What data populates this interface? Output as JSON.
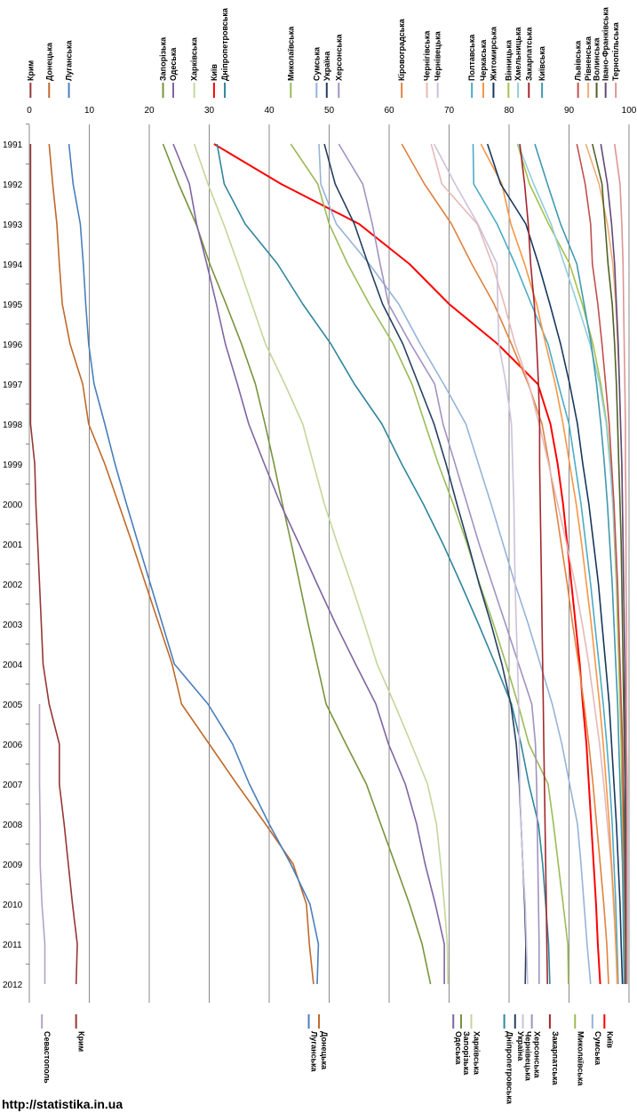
{
  "source_url": "http://statistika.in.ua",
  "chart_data": {
    "type": "line",
    "orientation": "vertical-time",
    "xlim": [
      0,
      100
    ],
    "x_ticks": [
      0,
      10,
      20,
      30,
      40,
      50,
      60,
      70,
      80,
      90,
      100
    ],
    "years": [
      "1991",
      "1992",
      "1993",
      "1994",
      "1995",
      "1996",
      "1997",
      "1998",
      "1999",
      "2000",
      "2001",
      "2002",
      "2003",
      "2004",
      "2005",
      "2006",
      "2007",
      "2008",
      "2009",
      "2010",
      "2011",
      "2012"
    ],
    "grid": true,
    "series": [
      {
        "name": "Крим",
        "color": "#953735",
        "values": [
          0.2,
          0.2,
          0.2,
          0.2,
          0.2,
          0.2,
          0.2,
          0.2,
          0.9,
          1.1,
          1.4,
          1.7,
          2.0,
          2.3,
          3.3,
          5.0,
          5.0,
          5.8,
          6.5,
          7.2,
          8.0,
          7.8
        ]
      },
      {
        "name": "Донецька",
        "color": "#c0692a",
        "values": [
          3.3,
          3.9,
          4.6,
          5.0,
          5.5,
          6.8,
          8.9,
          9.9,
          12.6,
          14.9,
          17.2,
          19.4,
          21.6,
          23.8,
          25.4,
          30.0,
          34.6,
          39.4,
          44.0,
          46.2,
          46.7,
          47.4
        ]
      },
      {
        "name": "Луганська",
        "color": "#4a7ebb",
        "values": [
          6.6,
          7.3,
          8.5,
          9.0,
          9.4,
          9.9,
          10.8,
          12.6,
          14.3,
          16.2,
          18.2,
          20.2,
          22.2,
          24.2,
          29.8,
          33.9,
          36.7,
          40.0,
          43.6,
          46.8,
          48.2,
          48.0
        ]
      },
      {
        "name": "Севастополь",
        "color": "#b3a2c7",
        "values": [
          null,
          null,
          null,
          null,
          null,
          null,
          null,
          null,
          null,
          null,
          null,
          null,
          null,
          null,
          1.7,
          1.7,
          1.7,
          1.8,
          1.8,
          2.1,
          2.6,
          2.6
        ]
      },
      {
        "name": "Запорізька",
        "color": "#77933c",
        "values": [
          22.3,
          24.9,
          27.8,
          30.1,
          32.8,
          35.4,
          37.7,
          39.3,
          40.8,
          42.2,
          43.7,
          45.1,
          46.5,
          48.0,
          49.5,
          52.8,
          56.2,
          58.6,
          61.0,
          63.4,
          65.5,
          66.9
        ]
      },
      {
        "name": "Одеська",
        "color": "#8064a2",
        "values": [
          24.0,
          26.7,
          27.9,
          29.6,
          31.2,
          32.7,
          34.7,
          36.6,
          39.2,
          41.9,
          45.0,
          48.0,
          51.1,
          54.4,
          57.8,
          59.9,
          62.7,
          64.6,
          66.0,
          67.7,
          69.2,
          69.2
        ]
      },
      {
        "name": "Харківська",
        "color": "#c3d69b",
        "values": [
          27.5,
          29.8,
          32.4,
          34.8,
          37.1,
          39.4,
          42.6,
          45.6,
          47.4,
          49.2,
          51.4,
          53.7,
          55.9,
          58.0,
          60.9,
          63.7,
          66.4,
          67.9,
          68.6,
          69.2,
          69.7,
          69.8
        ]
      },
      {
        "name": "Київ",
        "color": "#ff0000",
        "values": [
          30.8,
          42.0,
          55.0,
          63.4,
          70.0,
          78.1,
          84.8,
          86.9,
          88.1,
          89.0,
          89.7,
          90.4,
          91.1,
          91.8,
          92.3,
          92.9,
          93.3,
          93.7,
          94.1,
          94.5,
          94.8,
          95.2
        ]
      },
      {
        "name": "Дніпропетровська",
        "color": "#31859c",
        "values": [
          31.3,
          32.5,
          36.0,
          41.4,
          45.6,
          50.3,
          54.2,
          58.8,
          62.1,
          65.7,
          69.0,
          72.0,
          74.9,
          77.7,
          80.4,
          82.0,
          83.3,
          84.9,
          85.6,
          86.1,
          86.6,
          86.8
        ]
      },
      {
        "name": "Миколаївська",
        "color": "#9bbb59",
        "values": [
          43.6,
          48.1,
          50.0,
          53.1,
          56.7,
          60.7,
          63.8,
          66.0,
          68.2,
          70.7,
          73.0,
          75.1,
          77.4,
          79.5,
          81.5,
          83.3,
          86.5,
          87.4,
          88.2,
          89.0,
          89.8,
          89.9
        ]
      },
      {
        "name": "Сумська",
        "color": "#95b3d7",
        "values": [
          48.3,
          48.6,
          51.2,
          56.7,
          61.6,
          65.2,
          69.1,
          72.8,
          74.9,
          77.0,
          79.0,
          81.0,
          83.2,
          85.2,
          87.2,
          88.8,
          90.1,
          91.4,
          92.0,
          92.5,
          93.0,
          93.6
        ]
      },
      {
        "name": "Україна",
        "color": "#254061",
        "values": [
          49.2,
          51.0,
          54.2,
          56.5,
          58.9,
          62.3,
          64.9,
          67.5,
          69.5,
          71.3,
          73.2,
          75.0,
          77.0,
          78.8,
          80.3,
          81.2,
          81.7,
          82.0,
          82.3,
          82.6,
          82.8,
          82.7
        ]
      },
      {
        "name": "Херсонська",
        "color": "#a092c0",
        "values": [
          51.6,
          55.6,
          57.2,
          58.5,
          59.9,
          63.6,
          67.6,
          69.0,
          71.0,
          73.0,
          75.0,
          77.2,
          79.4,
          81.6,
          83.8,
          84.4,
          84.6,
          84.7,
          84.8,
          84.9,
          85.0,
          85.0
        ]
      },
      {
        "name": "Кіровоградська",
        "color": "#e0823e",
        "values": [
          62.1,
          65.9,
          70.4,
          73.8,
          77.5,
          80.4,
          83.2,
          85.5,
          86.7,
          87.7,
          88.7,
          89.7,
          90.6,
          91.6,
          92.5,
          93.3,
          94.0,
          94.6,
          95.2,
          95.8,
          96.3,
          96.6
        ]
      },
      {
        "name": "Чернігівська",
        "color": "#e6b9b8",
        "values": [
          67.0,
          68.8,
          74.7,
          77.2,
          79.2,
          81.0,
          83.3,
          85.0,
          86.6,
          88.1,
          89.6,
          91.0,
          92.2,
          93.3,
          94.2,
          95.1,
          95.8,
          96.4,
          97.0,
          97.4,
          97.8,
          98.0
        ]
      },
      {
        "name": "Чернівецька",
        "color": "#ccc1da",
        "values": [
          67.5,
          71.0,
          74.8,
          78.0,
          78.1,
          78.3,
          79.5,
          80.4,
          80.6,
          80.8,
          80.9,
          81.0,
          81.2,
          81.4,
          81.6,
          81.7,
          81.8,
          82.0,
          82.3,
          82.7,
          82.9,
          83.1
        ]
      },
      {
        "name": "Полтавська",
        "color": "#4bacc6",
        "values": [
          74.0,
          74.1,
          78.0,
          81.0,
          83.7,
          86.5,
          88.2,
          90.0,
          91.0,
          92.0,
          92.8,
          93.6,
          94.3,
          95.0,
          95.7,
          96.3,
          96.8,
          97.2,
          97.5,
          97.8,
          98.0,
          98.2
        ]
      },
      {
        "name": "Черкаська",
        "color": "#f79646",
        "values": [
          75.3,
          78.8,
          80.3,
          82.6,
          84.6,
          86.1,
          87.7,
          89.0,
          90.1,
          91.2,
          92.1,
          92.9,
          93.7,
          94.4,
          95.1,
          95.7,
          96.2,
          96.7,
          97.1,
          97.5,
          97.8,
          98.1
        ]
      },
      {
        "name": "Житомирська",
        "color": "#17375e",
        "values": [
          76.4,
          78.6,
          82.8,
          84.9,
          86.8,
          88.6,
          90.1,
          91.4,
          92.3,
          93.3,
          94.1,
          94.9,
          95.5,
          96.1,
          96.7,
          97.1,
          97.5,
          97.9,
          98.2,
          98.5,
          98.7,
          98.9
        ]
      },
      {
        "name": "Вінницька",
        "color": "#a5c249",
        "values": [
          81.4,
          83.4,
          86.6,
          90.1,
          92.2,
          94.0,
          95.3,
          96.3,
          96.9,
          97.3,
          97.6,
          97.9,
          98.1,
          98.3,
          98.5,
          98.7,
          98.8,
          98.9,
          99.0,
          99.1,
          99.2,
          99.3
        ]
      },
      {
        "name": "Хмельницька",
        "color": "#93cddd",
        "values": [
          81.5,
          84.1,
          87.0,
          89.2,
          91.4,
          93.5,
          95.1,
          96.2,
          96.8,
          97.3,
          97.7,
          98.0,
          98.3,
          98.5,
          98.7,
          98.9,
          99.0,
          99.1,
          99.2,
          99.3,
          99.4,
          99.4
        ]
      },
      {
        "name": "Закарпатська",
        "color": "#a3272d",
        "values": [
          81.8,
          82.6,
          83.2,
          83.6,
          84.2,
          84.6,
          84.9,
          85.1,
          85.1,
          85.2,
          85.3,
          85.4,
          85.5,
          85.6,
          85.7,
          85.8,
          85.9,
          86.0,
          86.1,
          86.2,
          86.3,
          86.4
        ]
      },
      {
        "name": "Київська",
        "color": "#4198af",
        "values": [
          84.3,
          86.4,
          88.6,
          91.3,
          92.5,
          93.7,
          94.6,
          95.3,
          95.9,
          96.4,
          96.8,
          97.2,
          97.5,
          97.8,
          98.1,
          98.3,
          98.5,
          98.7,
          98.9,
          99.0,
          99.1,
          99.2
        ]
      },
      {
        "name": "Львівська",
        "color": "#c0504d",
        "values": [
          91.3,
          92.7,
          93.6,
          93.9,
          94.8,
          95.5,
          96.1,
          96.7,
          97.1,
          97.5,
          97.8,
          98.1,
          98.3,
          98.5,
          98.7,
          98.9,
          99.0,
          99.1,
          99.2,
          99.3,
          99.4,
          99.4
        ]
      },
      {
        "name": "Рівненська",
        "color": "#f0ad73",
        "values": [
          92.8,
          95.0,
          96.4,
          97.3,
          97.8,
          98.1,
          98.4,
          98.6,
          98.8,
          98.9,
          99.0,
          99.1,
          99.2,
          99.3,
          99.4,
          99.4,
          99.5,
          99.5,
          99.5,
          99.6,
          99.6,
          99.6
        ]
      },
      {
        "name": "Волинська",
        "color": "#4f6228",
        "values": [
          93.9,
          95.5,
          96.0,
          96.5,
          97.2,
          97.6,
          97.9,
          98.1,
          98.3,
          98.5,
          98.7,
          98.8,
          98.9,
          99.0,
          99.1,
          99.2,
          99.3,
          99.3,
          99.4,
          99.4,
          99.5,
          99.5
        ]
      },
      {
        "name": "Івано-Франківська",
        "color": "#60497a",
        "values": [
          95.3,
          96.4,
          97.1,
          97.6,
          97.9,
          98.2,
          98.4,
          98.6,
          98.8,
          98.9,
          99.0,
          99.1,
          99.2,
          99.3,
          99.3,
          99.4,
          99.4,
          99.5,
          99.5,
          99.5,
          99.6,
          99.6
        ]
      },
      {
        "name": "Тернопільська",
        "color": "#d99694",
        "values": [
          97.6,
          98.5,
          98.8,
          99.0,
          99.1,
          99.2,
          99.3,
          99.4,
          99.4,
          99.5,
          99.5,
          99.5,
          99.6,
          99.6,
          99.6,
          99.6,
          99.7,
          99.7,
          99.7,
          99.7,
          99.7,
          99.7
        ]
      }
    ],
    "top_labels": [
      {
        "name": "Крим",
        "value": 0.2
      },
      {
        "name": "Донецька",
        "value": 3.3
      },
      {
        "name": "Луганська",
        "value": 6.6
      },
      {
        "name": "Запорізька",
        "value": 22.3
      },
      {
        "name": "Одеська",
        "value": 24.0
      },
      {
        "name": "Харківська",
        "value": 27.5
      },
      {
        "name": "Київ",
        "value": 30.8
      },
      {
        "name": "Дніпропетровська",
        "value": 32.6
      },
      {
        "name": "Миколаївська",
        "value": 43.6
      },
      {
        "name": "Сумська",
        "value": 47.9
      },
      {
        "name": "Україна",
        "value": 49.6
      },
      {
        "name": "Херсонська",
        "value": 51.6
      },
      {
        "name": "Кіровоградська",
        "value": 62.1
      },
      {
        "name": "Чернігівська",
        "value": 66.3
      },
      {
        "name": "Чернівецька",
        "value": 68.1
      },
      {
        "name": "Полтавська",
        "value": 73.8
      },
      {
        "name": "Черкаська",
        "value": 75.7
      },
      {
        "name": "Житомирська",
        "value": 77.4
      },
      {
        "name": "Вінницька",
        "value": 79.9
      },
      {
        "name": "Хмельницька",
        "value": 81.5
      },
      {
        "name": "Закарпатська",
        "value": 83.3
      },
      {
        "name": "Київська",
        "value": 85.5
      },
      {
        "name": "Львівська",
        "value": 91.5
      },
      {
        "name": "Рівненська",
        "value": 93.2
      },
      {
        "name": "Волинська",
        "value": 94.6
      },
      {
        "name": "Івано-Франківська",
        "value": 96.1
      },
      {
        "name": "Тернопільська",
        "value": 97.8
      }
    ],
    "bottom_labels": [
      {
        "name": "Севастополь",
        "value": 2.1
      },
      {
        "name": "Крим",
        "value": 7.8
      },
      {
        "name": "Луганська",
        "value": 46.6
      },
      {
        "name": "Донецька",
        "value": 48.3
      },
      {
        "name": "Одеська",
        "value": 70.7
      },
      {
        "name": "Запорізька",
        "value": 72.0
      },
      {
        "name": "Харківська",
        "value": 73.7
      },
      {
        "name": "Дніпропетровська",
        "value": 79.2
      },
      {
        "name": "Україна",
        "value": 81.0
      },
      {
        "name": "Чернівецька",
        "value": 82.3
      },
      {
        "name": "Херсонська",
        "value": 83.8
      },
      {
        "name": "Закарпатська",
        "value": 86.8
      },
      {
        "name": "Миколаївська",
        "value": 91.0
      },
      {
        "name": "Сумська",
        "value": 93.9
      },
      {
        "name": "Київ",
        "value": 95.9
      }
    ]
  }
}
